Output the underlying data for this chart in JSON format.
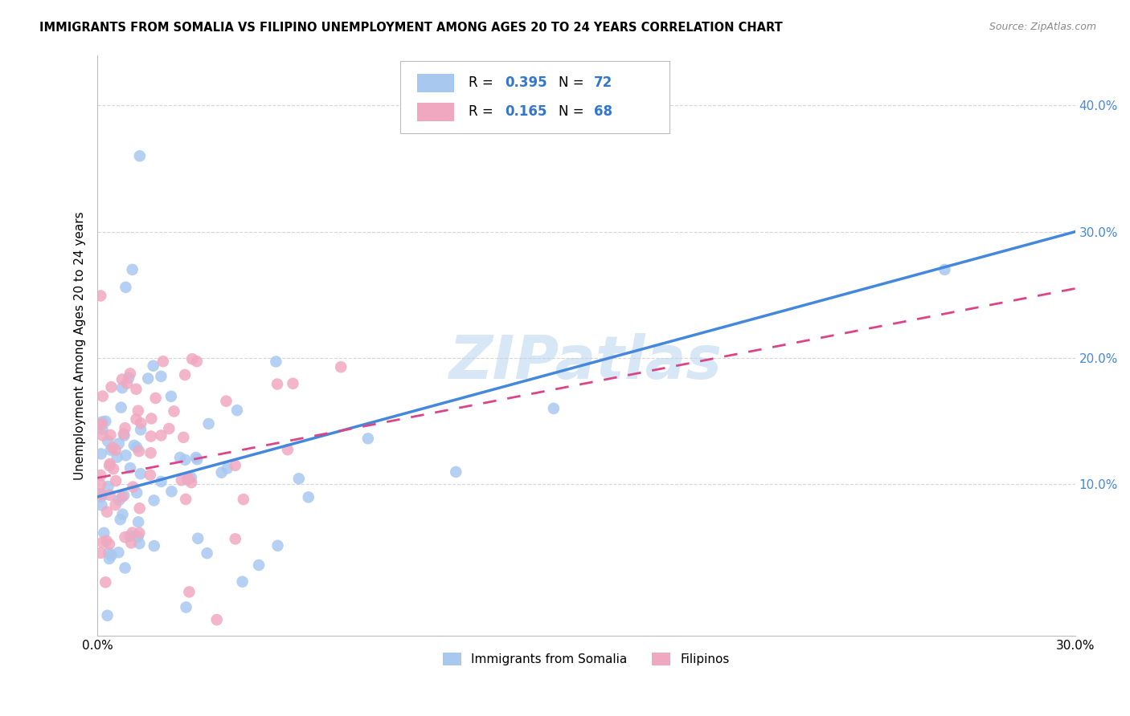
{
  "title": "IMMIGRANTS FROM SOMALIA VS FILIPINO UNEMPLOYMENT AMONG AGES 20 TO 24 YEARS CORRELATION CHART",
  "source": "Source: ZipAtlas.com",
  "ylabel": "Unemployment Among Ages 20 to 24 years",
  "xlim": [
    0.0,
    0.3
  ],
  "ylim": [
    -0.02,
    0.44
  ],
  "y_ticks": [
    0.1,
    0.2,
    0.3,
    0.4
  ],
  "y_tick_labels": [
    "10.0%",
    "20.0%",
    "30.0%",
    "40.0%"
  ],
  "x_ticks": [
    0.0,
    0.05,
    0.1,
    0.15,
    0.2,
    0.25,
    0.3
  ],
  "x_tick_labels": [
    "0.0%",
    "",
    "",
    "",
    "",
    "",
    "30.0%"
  ],
  "r_somalia": 0.395,
  "n_somalia": 72,
  "r_filipino": 0.165,
  "n_filipino": 68,
  "color_somalia": "#a8c8f0",
  "color_filipino": "#f0a8c0",
  "color_somalia_line": "#4488dd",
  "color_filipino_line": "#dd4488",
  "legend_label_somalia": "Immigrants from Somalia",
  "legend_label_filipino": "Filipinos",
  "watermark": "ZIPatlas",
  "som_line_x": [
    0.0,
    0.3
  ],
  "som_line_y": [
    0.09,
    0.3
  ],
  "fil_line_x": [
    0.0,
    0.12
  ],
  "fil_line_y": [
    0.105,
    0.165
  ]
}
